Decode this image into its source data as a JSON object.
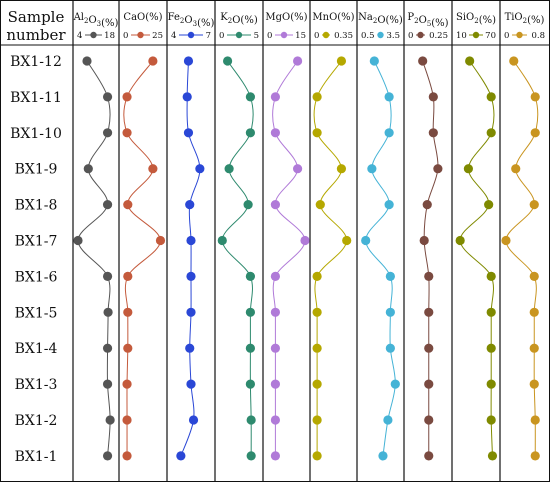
{
  "header": {
    "line1": "Sample",
    "line2": "number"
  },
  "chart_data": {
    "type": "line",
    "categories": [
      "BX1-12",
      "BX1-11",
      "BX1-10",
      "BX1-9",
      "BX1-8",
      "BX1-7",
      "BX1-6",
      "BX1-5",
      "BX1-4",
      "BX1-3",
      "BX1-2",
      "BX1-1"
    ],
    "series": [
      {
        "name": "Al2O3(%)",
        "sub": "2",
        "subPos": 2,
        "sub2": "3",
        "color": "#555555",
        "min": "4",
        "max": "18",
        "range": [
          4,
          18
        ],
        "values": [
          7.5,
          15.5,
          15.5,
          8.0,
          15.5,
          4.0,
          15.5,
          15.7,
          15.5,
          15.5,
          16.5,
          15.5
        ]
      },
      {
        "name": "CaO(%)",
        "color": "#c45a3c",
        "min": "0",
        "max": "25",
        "range": [
          0,
          25
        ],
        "values": [
          19.0,
          2.0,
          2.0,
          19.0,
          2.5,
          24.0,
          2.5,
          2.5,
          2.5,
          2.0,
          2.0,
          2.0
        ]
      },
      {
        "name": "Fe2O3(%)",
        "color": "#2a47d6",
        "min": "4",
        "max": "7",
        "range": [
          4,
          7
        ],
        "values": [
          5.3,
          5.2,
          5.3,
          6.2,
          5.4,
          5.5,
          5.5,
          5.5,
          5.4,
          5.5,
          5.7,
          4.7
        ]
      },
      {
        "name": "K2O(%)",
        "color": "#2e8a6e",
        "min": "0",
        "max": "5",
        "range": [
          0,
          5
        ],
        "values": [
          1.0,
          4.0,
          4.0,
          1.2,
          3.7,
          0.3,
          4.0,
          4.0,
          4.0,
          4.0,
          4.1,
          4.1
        ]
      },
      {
        "name": "MgO(%)",
        "color": "#b07ad8",
        "min": "0",
        "max": "15",
        "range": [
          0,
          15
        ],
        "values": [
          12.0,
          3.0,
          3.0,
          12.0,
          3.0,
          15.0,
          3.0,
          3.0,
          3.0,
          3.0,
          3.0,
          3.0
        ]
      },
      {
        "name": "MnO(%)",
        "color": "#b5a800",
        "min": "0",
        "max": "0.35",
        "range": [
          0,
          0.35
        ],
        "values": [
          0.25,
          0.02,
          0.02,
          0.25,
          0.05,
          0.3,
          0.02,
          0.02,
          0.02,
          0.02,
          0.02,
          0.02
        ]
      },
      {
        "name": "Na2O(%)",
        "color": "#45b3d6",
        "min": "0.5",
        "max": "3.5",
        "range": [
          0.5,
          3.5
        ],
        "values": [
          1.5,
          2.7,
          2.7,
          1.3,
          2.7,
          0.8,
          2.8,
          2.8,
          2.8,
          3.2,
          2.6,
          2.2
        ]
      },
      {
        "name": "P2O5(%)",
        "color": "#7a4a40",
        "min": "0",
        "max": "0.25",
        "range": [
          0,
          0.25
        ],
        "values": [
          0.09,
          0.16,
          0.16,
          0.19,
          0.12,
          0.1,
          0.13,
          0.13,
          0.13,
          0.13,
          0.13,
          0.13
        ]
      },
      {
        "name": "SiO2(%)",
        "color": "#7f8a00",
        "min": "10",
        "max": "70",
        "range": [
          10,
          70
        ],
        "values": [
          30,
          64,
          64,
          28,
          60,
          15,
          64,
          64,
          64,
          64,
          64,
          66
        ]
      },
      {
        "name": "TiO2(%)",
        "color": "#c99520",
        "min": "0",
        "max": "0.8",
        "range": [
          0,
          0.8
        ],
        "values": [
          0.18,
          0.62,
          0.62,
          0.22,
          0.6,
          0.02,
          0.6,
          0.6,
          0.6,
          0.6,
          0.62,
          0.62
        ]
      }
    ]
  }
}
